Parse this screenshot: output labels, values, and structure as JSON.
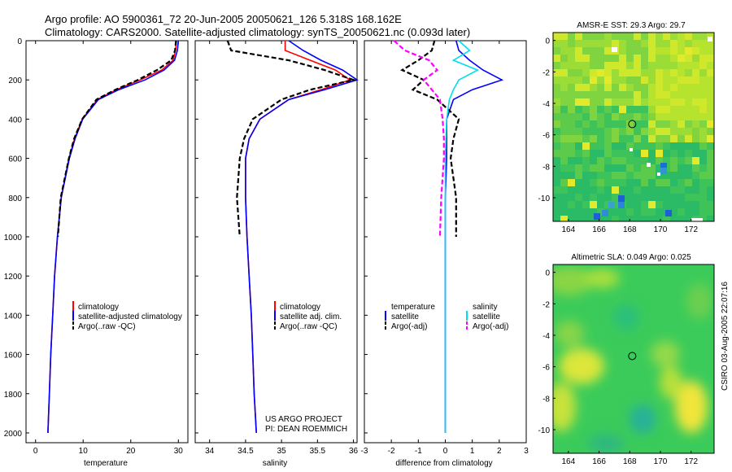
{
  "header": {
    "line1": "Argo profile: AO 5900361_72 20-Jun-2005 20050621_126 5.318S 168.162E",
    "line2": "Climatology: CARS2000. Satellite-adjusted climatology: synTS_20050621.nc (0.093d later)"
  },
  "colors": {
    "climatology": "#ff0000",
    "satellite": "#0000ff",
    "argo": "#000000",
    "sal_satellite": "#00ddee",
    "sal_argo": "#ff00ff"
  },
  "footer_text": {
    "project": "US ARGO PROJECT",
    "pi": "PI: DEAN ROEMMICH",
    "timestamp": "CSIRO 03-Aug-2005 22:07:16"
  },
  "legends": {
    "temperature": [
      "climatology",
      "satellite-adjusted climatology",
      "Argo(..raw -QC)"
    ],
    "salinity": [
      "climatology",
      "satellite adj. clim.",
      "Argo(..raw -QC)"
    ],
    "difference": {
      "temp_header": "temperature",
      "sal_header": "salinity",
      "temp_items": [
        "satellite",
        "Argo(-adj)"
      ],
      "sal_items": [
        "satellite",
        "Argo(-adj)"
      ]
    }
  },
  "chart_data": [
    {
      "id": "temperature",
      "type": "line",
      "xlabel": "temperature",
      "ylabel": "",
      "xlim": [
        -2,
        32
      ],
      "ylim": [
        2050,
        0
      ],
      "xticks": [
        "0",
        "10",
        "20",
        "30"
      ],
      "yticks": [
        "0",
        "200",
        "400",
        "600",
        "800",
        "1000",
        "1200",
        "1400",
        "1600",
        "1800",
        "2000"
      ],
      "depth": [
        0,
        50,
        100,
        150,
        200,
        250,
        300,
        400,
        500,
        600,
        800,
        1000,
        1200,
        1400,
        1600,
        1800,
        2000
      ],
      "series": [
        {
          "name": "climatology",
          "style": "solid",
          "values": [
            29.6,
            29.4,
            28.9,
            26.5,
            22.0,
            17.0,
            13.0,
            9.8,
            8.2,
            7.0,
            5.4,
            4.6,
            4.0,
            3.6,
            3.2,
            2.9,
            2.6
          ]
        },
        {
          "name": "satellite-adjusted climatology",
          "style": "solid",
          "values": [
            30.0,
            29.8,
            29.2,
            27.0,
            23.0,
            17.5,
            13.2,
            9.9,
            8.3,
            7.1,
            5.4,
            4.6,
            4.0,
            3.6,
            3.2,
            2.9,
            2.6
          ]
        },
        {
          "name": "Argo(..raw -QC)",
          "style": "dashed",
          "values": [
            29.5,
            29.3,
            28.5,
            25.5,
            21.5,
            16.8,
            12.8,
            9.8,
            8.1,
            7.0,
            5.3,
            4.7
          ]
        }
      ]
    },
    {
      "id": "salinity",
      "type": "line",
      "xlabel": "salinity",
      "ylabel": "",
      "xlim": [
        33.8,
        36.05
      ],
      "ylim": [
        2050,
        0
      ],
      "xticks": [
        "34",
        "34.5",
        "35",
        "35.5",
        "36"
      ],
      "yticks": [],
      "depth": [
        0,
        50,
        100,
        150,
        200,
        250,
        300,
        400,
        500,
        600,
        800,
        1000,
        1200,
        1400,
        1600,
        1800,
        2000
      ],
      "series": [
        {
          "name": "climatology",
          "style": "solid",
          "values": [
            35.05,
            35.05,
            35.4,
            35.75,
            35.95,
            35.55,
            35.1,
            34.7,
            34.55,
            34.5,
            34.5,
            34.52,
            34.55,
            34.58,
            34.6,
            34.62,
            34.65
          ]
        },
        {
          "name": "satellite adj. clim.",
          "style": "solid",
          "values": [
            35.1,
            35.3,
            35.55,
            35.85,
            36.05,
            35.6,
            35.1,
            34.7,
            34.55,
            34.5,
            34.5,
            34.52,
            34.55,
            34.58,
            34.6,
            34.62,
            34.65
          ]
        },
        {
          "name": "Argo(..raw -QC)",
          "style": "dashed",
          "values": [
            34.25,
            34.3,
            35.1,
            35.6,
            36.0,
            35.4,
            35.0,
            34.6,
            34.48,
            34.42,
            34.38,
            34.42
          ]
        }
      ]
    },
    {
      "id": "difference",
      "type": "line",
      "xlabel": "difference from climatology",
      "ylabel": "",
      "xlim": [
        -3,
        3
      ],
      "ylim": [
        2050,
        0
      ],
      "xticks": [
        "-3",
        "-2",
        "-1",
        "0",
        "1",
        "2",
        "3"
      ],
      "yticks": [],
      "depth": [
        0,
        50,
        100,
        150,
        200,
        250,
        300,
        400,
        500,
        600,
        800,
        1000,
        1200,
        1400,
        1600,
        1800,
        2000
      ],
      "series": [
        {
          "name": "temperature satellite",
          "style": "solid",
          "values": [
            0.4,
            0.5,
            0.9,
            1.4,
            2.1,
            1.0,
            0.3,
            0.05,
            0.05,
            0.05,
            0.0,
            0.0,
            0.0,
            0.0,
            0.0,
            0.0,
            0.0
          ]
        },
        {
          "name": "temperature Argo(-adj)",
          "style": "dashed",
          "values": [
            -0.4,
            -0.5,
            -1.0,
            -1.6,
            -0.8,
            -1.2,
            -0.3,
            0.5,
            0.3,
            0.2,
            0.4,
            0.4
          ]
        },
        {
          "name": "salinity satellite",
          "style": "solid",
          "values": [
            0.5,
            0.9,
            0.3,
            1.2,
            0.5,
            0.3,
            0.15,
            0.05,
            0.02,
            0.0,
            0.0,
            0.0,
            0.0,
            0.0,
            0.0,
            0.0,
            0.0
          ]
        },
        {
          "name": "salinity Argo(-adj)",
          "style": "dashed",
          "values": [
            -1.9,
            -1.5,
            -0.6,
            -0.3,
            -0.8,
            -0.5,
            -0.2,
            -0.1,
            -0.05,
            -0.05,
            -0.15,
            -0.2
          ]
        }
      ]
    },
    {
      "id": "sst_map",
      "type": "heatmap",
      "title": "AMSR-E SST: 29.3 Argo: 29.7",
      "xlim": [
        163,
        173.5
      ],
      "ylim": [
        -11.5,
        0.5
      ],
      "xticks": [
        "164",
        "166",
        "168",
        "170",
        "172"
      ],
      "yticks": [
        "0",
        "-2",
        "-4",
        "-6",
        "-8",
        "-10"
      ],
      "marker": [
        168.162,
        -5.318
      ]
    },
    {
      "id": "sla_map",
      "type": "heatmap",
      "title": "Altimetric SLA: 0.049 Argo: 0.025",
      "xlim": [
        163,
        173.5
      ],
      "ylim": [
        -11.5,
        0.5
      ],
      "xticks": [
        "164",
        "166",
        "168",
        "170",
        "172"
      ],
      "yticks": [
        "0",
        "-2",
        "-4",
        "-6",
        "-8",
        "-10"
      ],
      "marker": [
        168.162,
        -5.318
      ]
    }
  ]
}
